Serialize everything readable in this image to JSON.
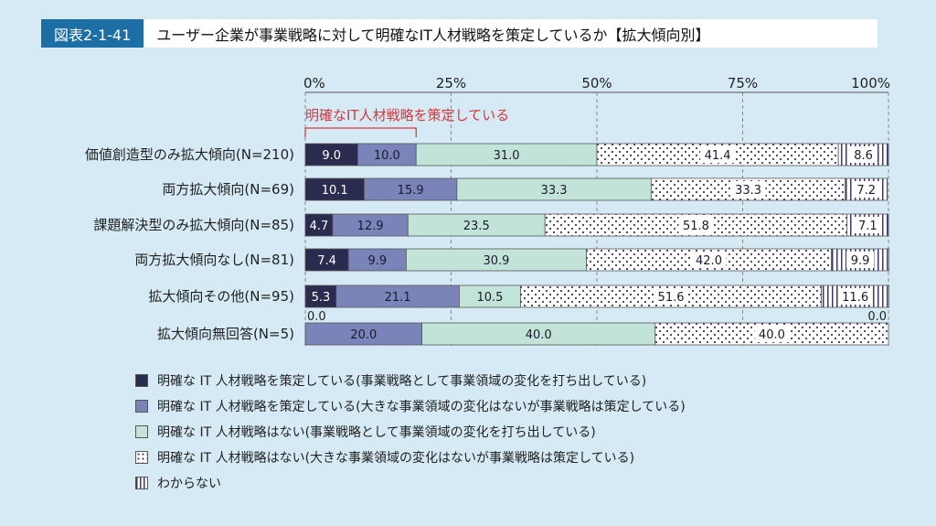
{
  "figure_number": "図表2-1-41",
  "figure_title": "ユーザー企業が事業戦略に対して明確なIT人材戦略を策定しているか【拡大傾向別】",
  "bracket_label": "明確なIT人材戦略を策定している",
  "colors": {
    "background": "#d5eaf4",
    "header": "#1c6ea4",
    "s1": "#2a2b4e",
    "s2": "#7b84b8",
    "s3": "#c2e3d8",
    "s4_dots": "#3a3a55",
    "s5_lines": "#3a3a6a",
    "bracket": "#d9373b"
  },
  "chart_data": {
    "type": "bar",
    "orientation": "horizontal",
    "stacked": true,
    "xlim": [
      0,
      100
    ],
    "x_ticks": [
      "0%",
      "25%",
      "50%",
      "75%",
      "100%"
    ],
    "categories": [
      "価値創造型のみ拡大傾向(N=210)",
      "両方拡大傾向(N=69)",
      "課題解決型のみ拡大傾向(N=85)",
      "両方拡大傾向なし(N=81)",
      "拡大傾向その他(N=95)",
      "拡大傾向無回答(N=5)"
    ],
    "series": [
      {
        "name": "明確な IT 人材戦略を策定している(事業戦略として事業領域の変化を打ち出している)",
        "values": [
          9.0,
          10.1,
          4.7,
          7.4,
          5.3,
          0.0
        ],
        "labels": [
          "9.0",
          "10.1",
          "4.7",
          "7.4",
          "5.3",
          "0.0"
        ]
      },
      {
        "name": "明確な IT 人材戦略を策定している(大きな事業領域の変化はないが事業戦略は策定している)",
        "values": [
          10.0,
          15.9,
          12.9,
          9.9,
          21.1,
          20.0
        ],
        "labels": [
          "10.0",
          "15.9",
          "12.9",
          "9.9",
          "21.1",
          "20.0"
        ]
      },
      {
        "name": "明確な IT 人材戦略はない(事業戦略として事業領域の変化を打ち出している)",
        "values": [
          31.0,
          33.3,
          23.5,
          30.9,
          10.5,
          40.0
        ],
        "labels": [
          "31.0",
          "33.3",
          "23.5",
          "30.9",
          "10.5",
          "40.0"
        ]
      },
      {
        "name": "明確な IT 人材戦略はない(大きな事業領域の変化はないが事業戦略は策定している)",
        "values": [
          41.4,
          33.3,
          51.8,
          42.0,
          51.6,
          40.0
        ],
        "labels": [
          "41.4",
          "33.3",
          "51.8",
          "42.0",
          "51.6",
          "40.0"
        ]
      },
      {
        "name": "わからない",
        "values": [
          8.6,
          7.2,
          7.1,
          9.9,
          11.6,
          0.0
        ],
        "labels": [
          "8.6",
          "7.2",
          "7.1",
          "9.9",
          "11.6",
          "0.0"
        ]
      }
    ]
  }
}
